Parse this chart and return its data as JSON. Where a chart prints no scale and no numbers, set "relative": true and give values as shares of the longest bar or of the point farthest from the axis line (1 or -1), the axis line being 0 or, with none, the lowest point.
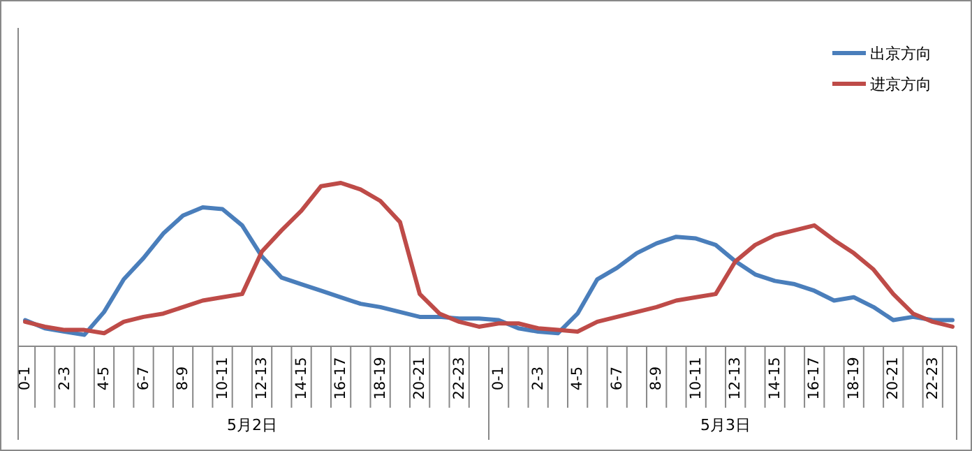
{
  "chart_data": {
    "type": "line",
    "relative": true,
    "legend": "top right",
    "line_style": "solid",
    "categories": [
      "0-1",
      null,
      "2-3",
      null,
      "4-5",
      null,
      "6-7",
      null,
      "8-9",
      null,
      "10-11",
      null,
      "12-13",
      null,
      "14-15",
      null,
      "16-17",
      null,
      "18-19",
      null,
      "20-21",
      null,
      "22-23",
      null,
      "0-1",
      null,
      "2-3",
      null,
      "4-5",
      null,
      "6-7",
      null,
      "8-9",
      null,
      "10-11",
      null,
      "12-13",
      null,
      "14-15",
      null,
      "16-17",
      null,
      "18-19",
      null,
      "20-21",
      null,
      "22-23",
      null
    ],
    "series": [
      {
        "name": "出京方向",
        "color": "#4a7ebb",
        "values": [
          0.16,
          0.11,
          0.09,
          0.07,
          0.21,
          0.41,
          0.54,
          0.69,
          0.8,
          0.85,
          0.84,
          0.74,
          0.55,
          0.42,
          0.38,
          0.34,
          0.3,
          0.26,
          0.24,
          0.21,
          0.18,
          0.18,
          0.17,
          0.17,
          0.16,
          0.11,
          0.09,
          0.08,
          0.2,
          0.41,
          0.48,
          0.57,
          0.63,
          0.67,
          0.66,
          0.62,
          0.52,
          0.44,
          0.4,
          0.38,
          0.34,
          0.28,
          0.3,
          0.24,
          0.16,
          0.18,
          0.16,
          0.16
        ]
      },
      {
        "name": "进京方向",
        "color": "#be4b48",
        "values": [
          0.15,
          0.12,
          0.1,
          0.1,
          0.08,
          0.15,
          0.18,
          0.2,
          0.24,
          0.28,
          0.3,
          0.32,
          0.58,
          0.71,
          0.83,
          0.98,
          1.0,
          0.96,
          0.89,
          0.76,
          0.32,
          0.2,
          0.15,
          0.12,
          0.14,
          0.14,
          0.11,
          0.1,
          0.09,
          0.15,
          0.18,
          0.21,
          0.24,
          0.28,
          0.3,
          0.32,
          0.52,
          0.62,
          0.68,
          0.71,
          0.74,
          0.65,
          0.57,
          0.47,
          0.32,
          0.2,
          0.15,
          0.12
        ]
      }
    ],
    "annotations": [
      "5月2日",
      "5月3日"
    ]
  }
}
